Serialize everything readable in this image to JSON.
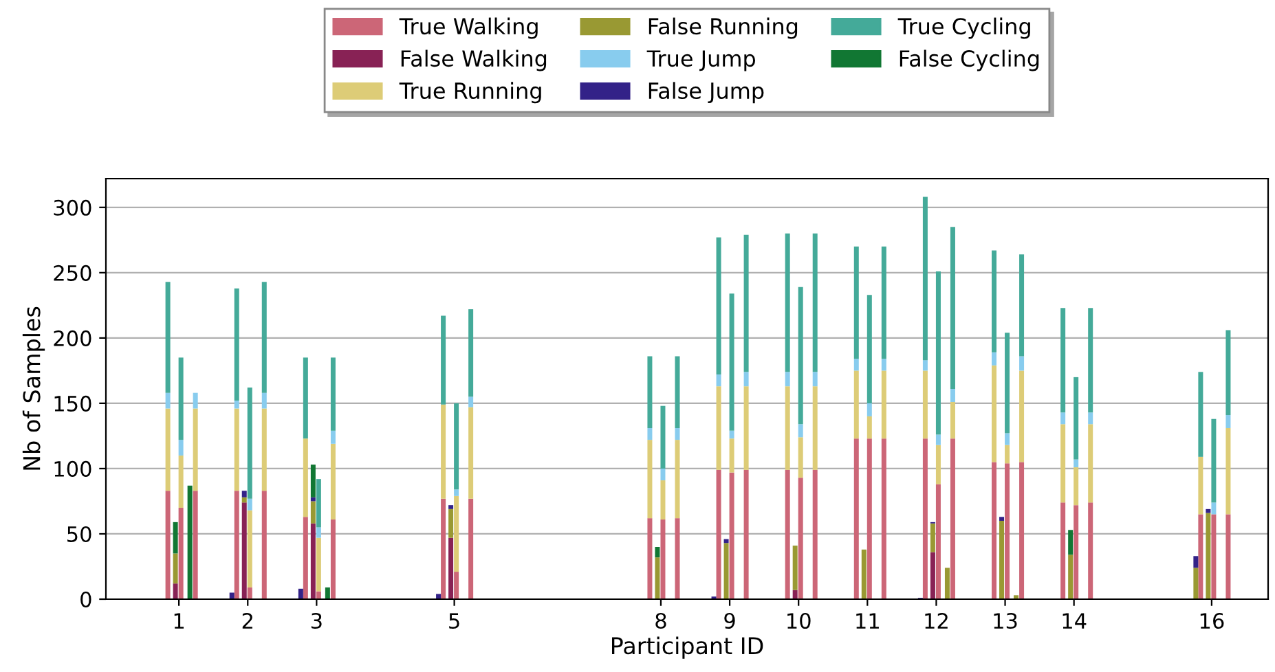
{
  "chart_data": {
    "type": "bar",
    "stacked": true,
    "xlabel": "Participant ID",
    "ylabel": "Nb of Samples",
    "xlim": [
      -0.06,
      16.82
    ],
    "xticks": [
      1,
      2,
      3,
      5,
      8,
      9,
      10,
      11,
      12,
      13,
      14,
      16
    ],
    "ylim": [
      0,
      322
    ],
    "yticks": [
      0,
      50,
      100,
      150,
      200,
      250,
      300
    ],
    "grid": "y",
    "legend": "top",
    "x": [
      0.84,
      0.95,
      1.03,
      1.16,
      1.24,
      1.77,
      1.84,
      1.95,
      2.03,
      2.24,
      2.77,
      2.84,
      2.95,
      3.03,
      3.16,
      3.24,
      4.77,
      4.84,
      4.95,
      5.03,
      5.24,
      7.84,
      7.95,
      8.03,
      8.24,
      8.77,
      8.84,
      8.95,
      9.03,
      9.24,
      9.84,
      9.95,
      10.03,
      10.24,
      10.84,
      10.95,
      11.03,
      11.24,
      11.77,
      11.84,
      11.95,
      12.03,
      12.16,
      12.24,
      12.84,
      12.95,
      13.03,
      13.16,
      13.24,
      13.84,
      13.95,
      14.03,
      14.24,
      15.77,
      15.84,
      15.95,
      16.03,
      16.24
    ],
    "series": [
      {
        "name": "True Walking",
        "color": "#cc6677",
        "values": [
          83,
          null,
          70,
          null,
          83,
          null,
          83,
          null,
          9,
          83,
          null,
          63,
          null,
          6,
          null,
          61,
          null,
          77,
          null,
          21,
          77,
          62,
          null,
          61,
          62,
          null,
          99,
          null,
          97,
          99,
          99,
          null,
          93,
          99,
          123,
          null,
          123,
          123,
          null,
          123,
          null,
          88,
          null,
          123,
          105,
          null,
          104,
          null,
          105,
          74,
          null,
          72,
          74,
          null,
          65,
          null,
          65,
          65
        ]
      },
      {
        "name": "False Walking",
        "color": "#882255",
        "values": [
          null,
          12,
          null,
          null,
          null,
          null,
          null,
          74,
          null,
          null,
          null,
          null,
          58,
          null,
          null,
          null,
          null,
          null,
          47,
          null,
          null,
          null,
          null,
          null,
          null,
          null,
          null,
          null,
          null,
          null,
          null,
          7,
          null,
          null,
          null,
          null,
          null,
          null,
          null,
          null,
          36,
          null,
          null,
          null,
          null,
          null,
          null,
          null,
          null,
          null,
          null,
          null,
          null,
          null,
          null,
          null,
          null,
          null
        ]
      },
      {
        "name": "True Running",
        "color": "#ddcc77",
        "values": [
          63,
          null,
          40,
          null,
          63,
          null,
          63,
          null,
          59,
          63,
          null,
          60,
          null,
          41,
          null,
          58,
          null,
          72,
          null,
          58,
          70,
          60,
          null,
          30,
          60,
          null,
          64,
          null,
          26,
          64,
          64,
          null,
          31,
          64,
          52,
          null,
          17,
          52,
          null,
          52,
          null,
          30,
          null,
          28,
          74,
          null,
          14,
          null,
          70,
          60,
          null,
          29,
          60,
          null,
          44,
          null,
          null,
          66
        ]
      },
      {
        "name": "False Running",
        "color": "#999933",
        "values": [
          null,
          23,
          null,
          null,
          null,
          null,
          null,
          4,
          null,
          null,
          null,
          null,
          17,
          null,
          null,
          null,
          null,
          null,
          22,
          null,
          null,
          null,
          32,
          null,
          null,
          null,
          null,
          43,
          null,
          null,
          null,
          34,
          null,
          null,
          null,
          38,
          null,
          null,
          null,
          null,
          22,
          null,
          24,
          null,
          null,
          60,
          null,
          3,
          null,
          null,
          34,
          null,
          null,
          24,
          null,
          66,
          null,
          null
        ]
      },
      {
        "name": "True Jump",
        "color": "#88ccee",
        "values": [
          12,
          null,
          12,
          null,
          12,
          null,
          6,
          null,
          9,
          12,
          null,
          null,
          null,
          8,
          null,
          10,
          null,
          null,
          null,
          5,
          8,
          9,
          null,
          9,
          9,
          null,
          9,
          null,
          6,
          11,
          11,
          null,
          10,
          11,
          9,
          null,
          10,
          9,
          null,
          8,
          null,
          8,
          null,
          10,
          10,
          null,
          9,
          null,
          11,
          9,
          null,
          6,
          9,
          null,
          null,
          null,
          9,
          10
        ]
      },
      {
        "name": "False Jump",
        "color": "#332288",
        "values": [
          null,
          null,
          null,
          null,
          null,
          5,
          null,
          5,
          null,
          null,
          8,
          null,
          3,
          null,
          null,
          null,
          4,
          null,
          3,
          null,
          null,
          null,
          null,
          null,
          null,
          2,
          null,
          3,
          null,
          null,
          null,
          null,
          null,
          null,
          null,
          null,
          null,
          null,
          1,
          null,
          1,
          null,
          null,
          null,
          null,
          3,
          null,
          null,
          null,
          null,
          null,
          null,
          null,
          9,
          null,
          3,
          null,
          null
        ]
      },
      {
        "name": "True Cycling",
        "color": "#44aa99",
        "values": [
          85,
          null,
          63,
          null,
          null,
          null,
          86,
          null,
          85,
          85,
          null,
          62,
          null,
          37,
          null,
          56,
          null,
          68,
          null,
          66,
          67,
          55,
          null,
          48,
          55,
          null,
          105,
          null,
          105,
          105,
          106,
          null,
          105,
          106,
          86,
          null,
          83,
          86,
          null,
          125,
          null,
          125,
          null,
          124,
          78,
          null,
          77,
          null,
          78,
          80,
          null,
          63,
          80,
          null,
          65,
          null,
          64,
          65
        ]
      },
      {
        "name": "False Cycling",
        "color": "#117733",
        "values": [
          null,
          24,
          null,
          87,
          null,
          null,
          null,
          null,
          null,
          null,
          null,
          null,
          25,
          null,
          9,
          null,
          null,
          null,
          null,
          null,
          null,
          null,
          8,
          null,
          null,
          null,
          null,
          null,
          null,
          null,
          null,
          null,
          null,
          null,
          null,
          null,
          null,
          null,
          null,
          null,
          null,
          null,
          null,
          null,
          null,
          null,
          null,
          null,
          null,
          null,
          19,
          null,
          null,
          null,
          null,
          null,
          null,
          null
        ]
      }
    ]
  }
}
